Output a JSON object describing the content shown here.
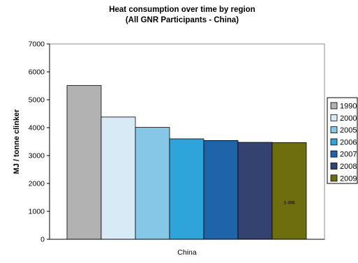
{
  "chart_data": {
    "type": "bar",
    "title": "Heat consumption over time by region",
    "subtitle": "(All GNR Participants - China)",
    "xlabel": "China",
    "ylabel": "MJ / tonne clinker",
    "categories": [
      "China"
    ],
    "series": [
      {
        "name": "1990",
        "values": [
          5510
        ],
        "color": "#b2b2b2"
      },
      {
        "name": "2000",
        "values": [
          4380
        ],
        "color": "#d9eaf7"
      },
      {
        "name": "2005",
        "values": [
          4010
        ],
        "color": "#86c6e6"
      },
      {
        "name": "2006",
        "values": [
          3600
        ],
        "color": "#2fa4da"
      },
      {
        "name": "2007",
        "values": [
          3540
        ],
        "color": "#1f63a8"
      },
      {
        "name": "2008",
        "values": [
          3475
        ],
        "color": "#33426e"
      },
      {
        "name": "2009",
        "values": [
          3466
        ],
        "color": "#6e6e0e"
      }
    ],
    "data_labels": [
      {
        "series": "2009",
        "text": "3 466"
      }
    ],
    "ylim": [
      0,
      7000
    ],
    "yticks": [
      "0",
      "1000",
      "2000",
      "3000",
      "4000",
      "5000",
      "6000",
      "7000"
    ],
    "grid": false,
    "legend_position": "right"
  }
}
